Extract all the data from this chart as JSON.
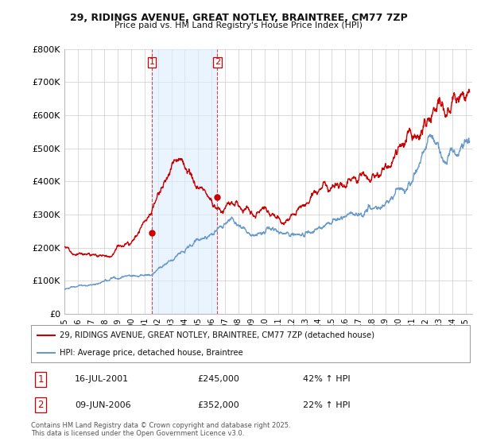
{
  "title1": "29, RIDINGS AVENUE, GREAT NOTLEY, BRAINTREE, CM77 7ZP",
  "title2": "Price paid vs. HM Land Registry's House Price Index (HPI)",
  "ylim": [
    0,
    800000
  ],
  "yticks": [
    0,
    100000,
    200000,
    300000,
    400000,
    500000,
    600000,
    700000,
    800000
  ],
  "ytick_labels": [
    "£0",
    "£100K",
    "£200K",
    "£300K",
    "£400K",
    "£500K",
    "£600K",
    "£700K",
    "£800K"
  ],
  "xlim_start": 1995.0,
  "xlim_end": 2025.5,
  "purchase1_date": 2001.54,
  "purchase1_price": 245000,
  "purchase1_label": "1",
  "purchase1_text": "16-JUL-2001",
  "purchase1_hpi": "42% ↑ HPI",
  "purchase2_date": 2006.44,
  "purchase2_price": 352000,
  "purchase2_label": "2",
  "purchase2_text": "09-JUN-2006",
  "purchase2_hpi": "22% ↑ HPI",
  "legend_line1": "29, RIDINGS AVENUE, GREAT NOTLEY, BRAINTREE, CM77 7ZP (detached house)",
  "legend_line2": "HPI: Average price, detached house, Braintree",
  "red_color": "#cc0000",
  "blue_color": "#6699cc",
  "blue_fill_color": "#ddeeff",
  "footnote": "Contains HM Land Registry data © Crown copyright and database right 2025.\nThis data is licensed under the Open Government Licence v3.0.",
  "background_color": "#ffffff",
  "grid_color": "#cccccc"
}
